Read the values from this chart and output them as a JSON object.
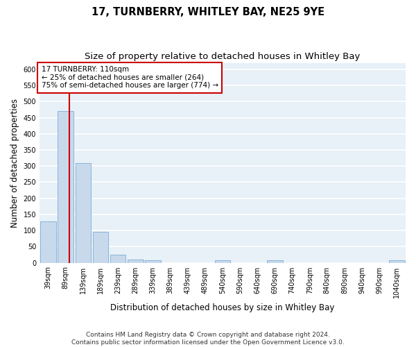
{
  "title": "17, TURNBERRY, WHITLEY BAY, NE25 9YE",
  "subtitle": "Size of property relative to detached houses in Whitley Bay",
  "xlabel": "Distribution of detached houses by size in Whitley Bay",
  "ylabel": "Number of detached properties",
  "bar_color": "#c8d9ec",
  "bar_edge_color": "#7aadd4",
  "categories": [
    "39sqm",
    "89sqm",
    "139sqm",
    "189sqm",
    "239sqm",
    "289sqm",
    "339sqm",
    "389sqm",
    "439sqm",
    "489sqm",
    "540sqm",
    "590sqm",
    "640sqm",
    "690sqm",
    "740sqm",
    "790sqm",
    "840sqm",
    "890sqm",
    "940sqm",
    "990sqm",
    "1040sqm"
  ],
  "values": [
    128,
    470,
    310,
    96,
    25,
    10,
    7,
    0,
    0,
    0,
    7,
    0,
    0,
    7,
    0,
    0,
    0,
    0,
    0,
    0,
    7
  ],
  "ylim": [
    0,
    620
  ],
  "yticks": [
    0,
    50,
    100,
    150,
    200,
    250,
    300,
    350,
    400,
    450,
    500,
    550,
    600
  ],
  "vline_x": 1.22,
  "vline_color": "#cc0000",
  "annotation_box_text": "17 TURNBERRY: 110sqm\n← 25% of detached houses are smaller (264)\n75% of semi-detached houses are larger (774) →",
  "bg_color": "#e8f0f8",
  "grid_color": "#ffffff",
  "footnote": "Contains HM Land Registry data © Crown copyright and database right 2024.\nContains public sector information licensed under the Open Government Licence v3.0.",
  "title_fontsize": 10.5,
  "subtitle_fontsize": 9.5,
  "xlabel_fontsize": 8.5,
  "ylabel_fontsize": 8.5,
  "tick_fontsize": 7,
  "annotation_fontsize": 7.5,
  "footnote_fontsize": 6.5
}
